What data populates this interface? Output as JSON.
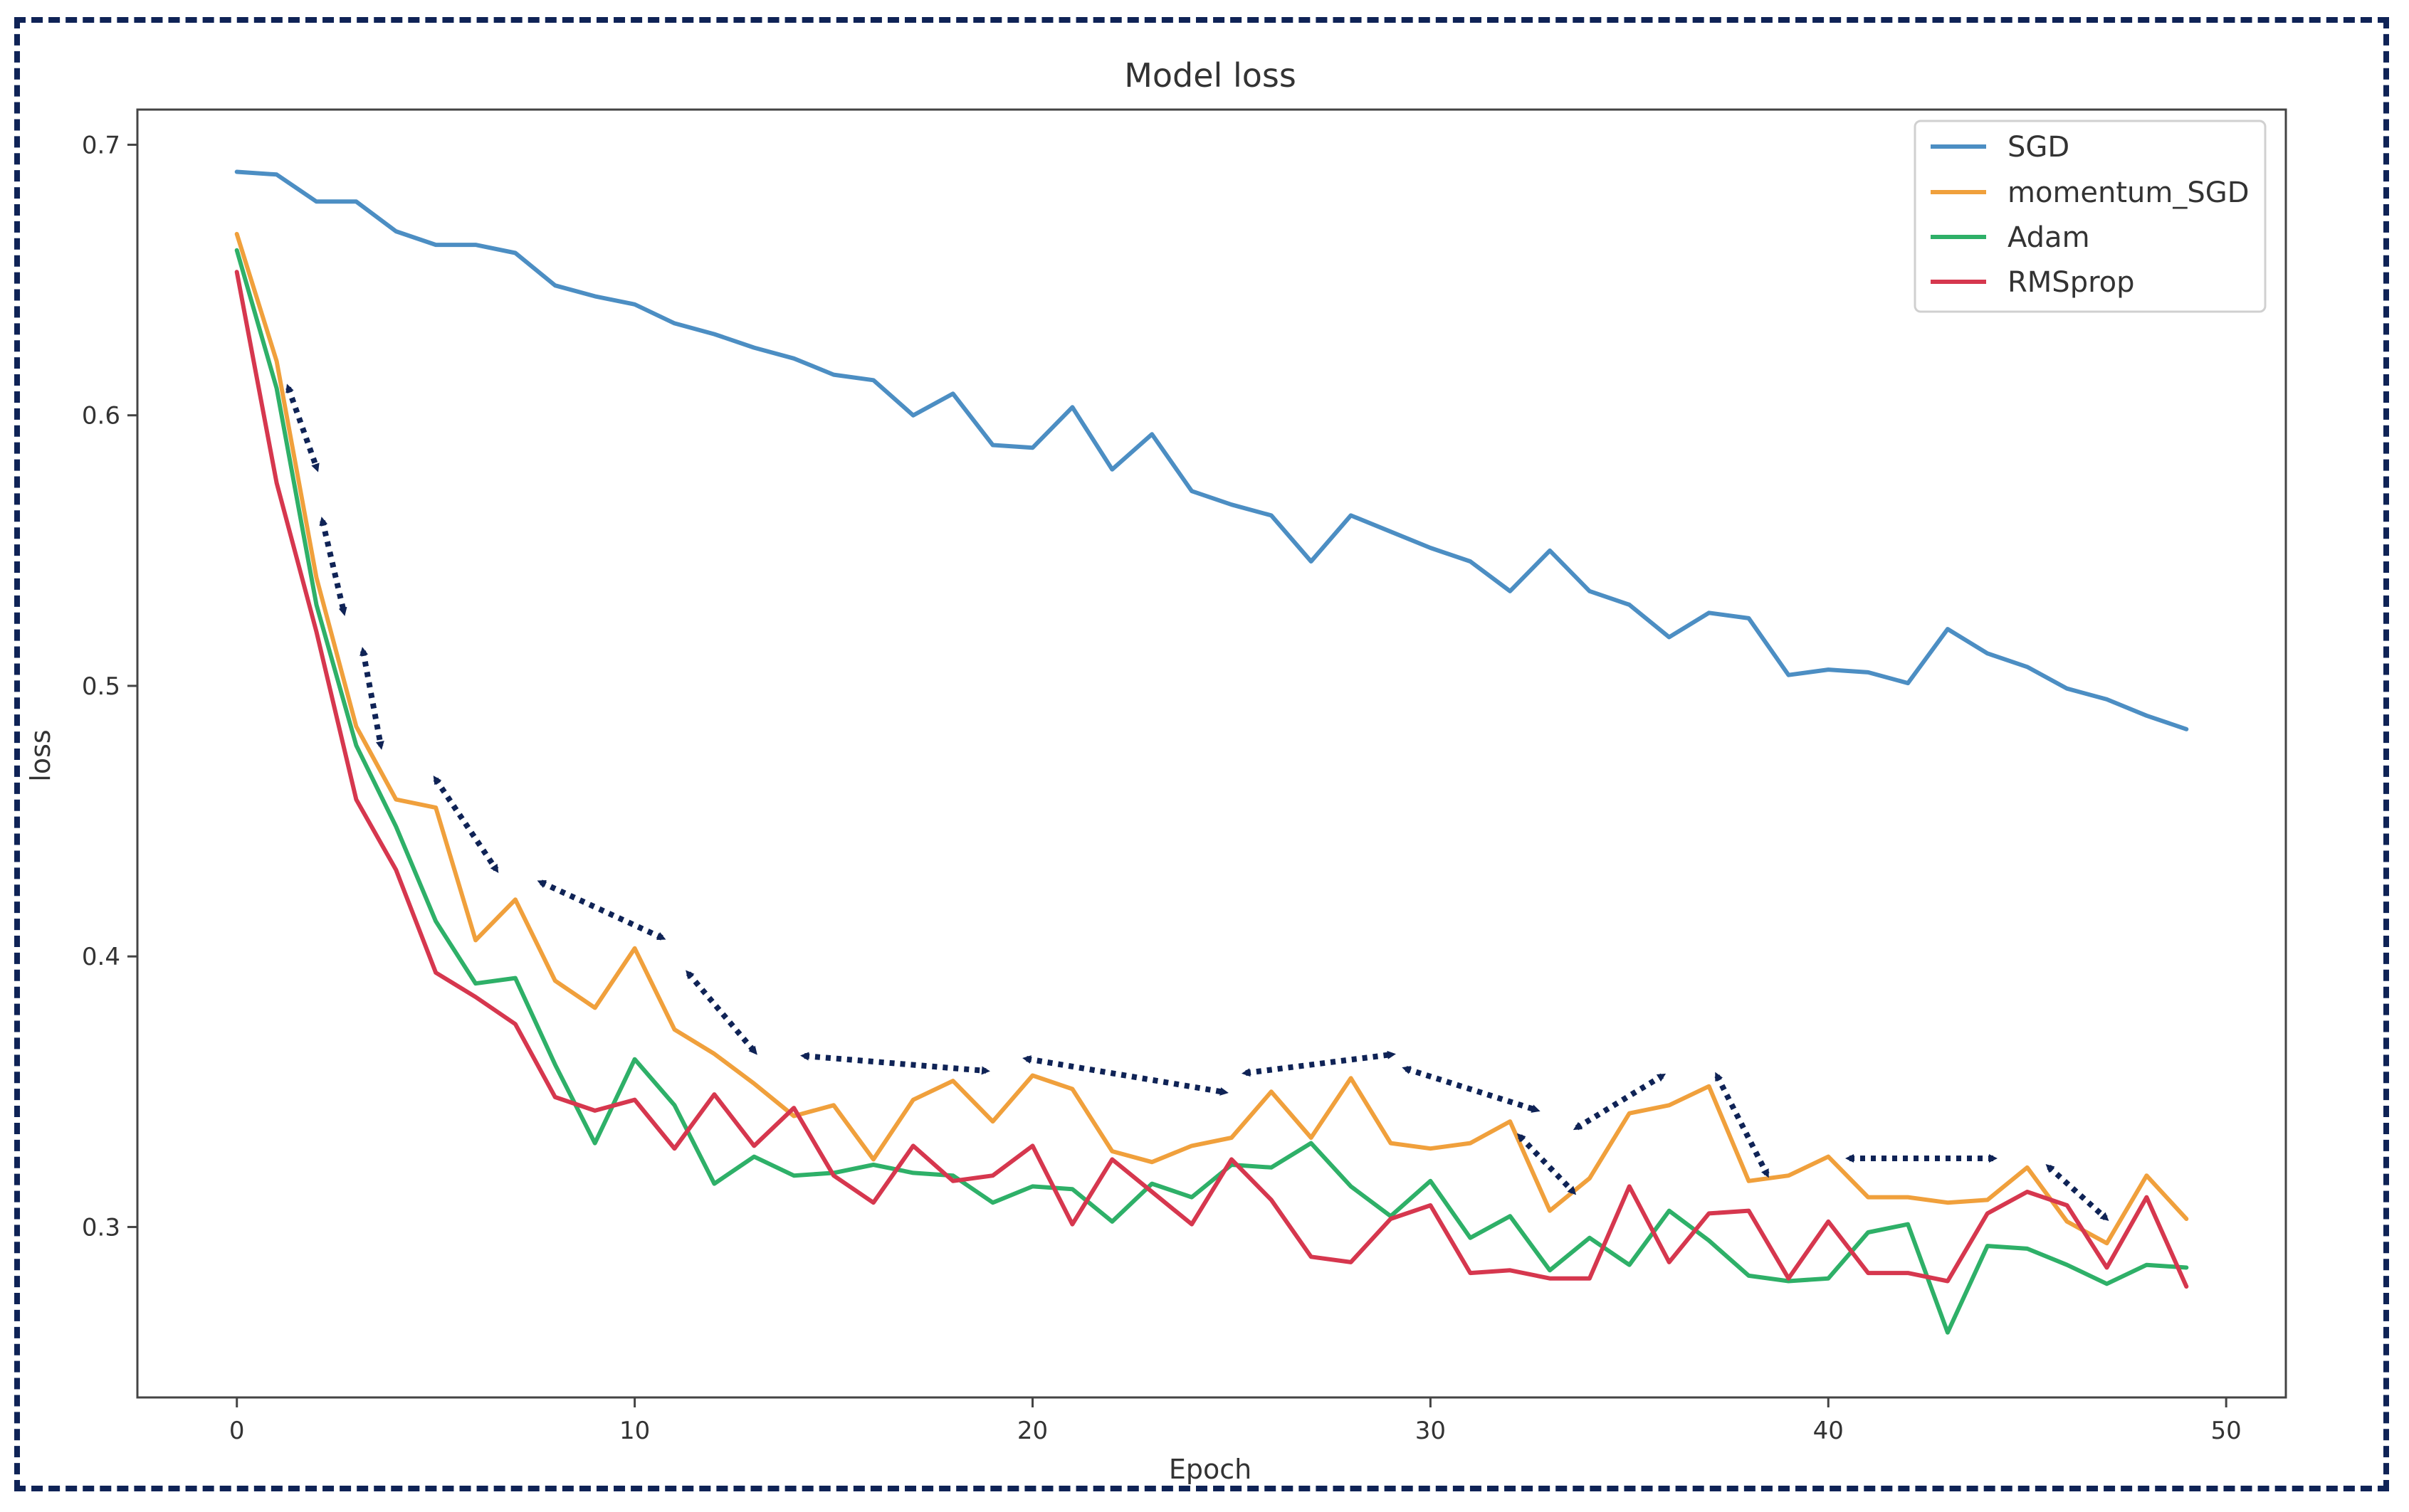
{
  "chart_data": {
    "type": "line",
    "title": "Model loss",
    "xlabel": "Epoch",
    "ylabel": "loss",
    "xlim": [
      -2.5,
      51.5
    ],
    "ylim": [
      0.237,
      0.713
    ],
    "xticks": [
      0,
      10,
      20,
      30,
      40,
      50
    ],
    "xtick_labels": [
      "0",
      "10",
      "20",
      "30",
      "40",
      "50"
    ],
    "yticks": [
      0.3,
      0.4,
      0.5,
      0.6,
      0.7
    ],
    "ytick_labels": [
      "0.3",
      "0.4",
      "0.5",
      "0.6",
      "0.7"
    ],
    "legend_position": "top-right",
    "x": [
      0,
      1,
      2,
      3,
      4,
      5,
      6,
      7,
      8,
      9,
      10,
      11,
      12,
      13,
      14,
      15,
      16,
      17,
      18,
      19,
      20,
      21,
      22,
      23,
      24,
      25,
      26,
      27,
      28,
      29,
      30,
      31,
      32,
      33,
      34,
      35,
      36,
      37,
      38,
      39,
      40,
      41,
      42,
      43,
      44,
      45,
      46,
      47,
      48,
      49
    ],
    "series": [
      {
        "name": "SGD",
        "color": "#4c8ec3",
        "values": [
          0.69,
          0.689,
          0.679,
          0.679,
          0.668,
          0.663,
          0.663,
          0.66,
          0.648,
          0.644,
          0.641,
          0.634,
          0.63,
          0.625,
          0.621,
          0.615,
          0.613,
          0.6,
          0.608,
          0.589,
          0.588,
          0.603,
          0.58,
          0.593,
          0.572,
          0.567,
          0.563,
          0.546,
          0.563,
          0.557,
          0.551,
          0.546,
          0.535,
          0.55,
          0.535,
          0.53,
          0.518,
          0.527,
          0.525,
          0.504,
          0.506,
          0.505,
          0.501,
          0.521,
          0.512,
          0.507,
          0.499,
          0.495,
          0.489,
          0.484
        ]
      },
      {
        "name": "momentum_SGD",
        "color": "#f0a03c",
        "values": [
          0.667,
          0.62,
          0.54,
          0.485,
          0.458,
          0.455,
          0.406,
          0.421,
          0.391,
          0.381,
          0.403,
          0.373,
          0.364,
          0.353,
          0.341,
          0.345,
          0.325,
          0.347,
          0.354,
          0.339,
          0.356,
          0.351,
          0.328,
          0.324,
          0.33,
          0.333,
          0.35,
          0.333,
          0.355,
          0.331,
          0.329,
          0.331,
          0.339,
          0.306,
          0.318,
          0.342,
          0.345,
          0.352,
          0.317,
          0.319,
          0.326,
          0.311,
          0.311,
          0.309,
          0.31,
          0.322,
          0.302,
          0.294,
          0.319,
          0.303
        ]
      },
      {
        "name": "Adam",
        "color": "#2eb068",
        "values": [
          0.661,
          0.61,
          0.53,
          0.478,
          0.448,
          0.413,
          0.39,
          0.392,
          0.36,
          0.331,
          0.362,
          0.345,
          0.316,
          0.326,
          0.319,
          0.32,
          0.323,
          0.32,
          0.319,
          0.309,
          0.315,
          0.314,
          0.302,
          0.316,
          0.311,
          0.323,
          0.322,
          0.331,
          0.315,
          0.304,
          0.317,
          0.296,
          0.304,
          0.284,
          0.296,
          0.286,
          0.306,
          0.295,
          0.282,
          0.28,
          0.281,
          0.298,
          0.301,
          0.261,
          0.293,
          0.292,
          0.286,
          0.279,
          0.286,
          0.285
        ]
      },
      {
        "name": "RMSprop",
        "color": "#d6374e",
        "values": [
          0.653,
          0.575,
          0.52,
          0.458,
          0.432,
          0.394,
          0.385,
          0.375,
          0.348,
          0.343,
          0.347,
          0.329,
          0.349,
          0.33,
          0.344,
          0.319,
          0.309,
          0.33,
          0.317,
          0.319,
          0.33,
          0.301,
          0.325,
          0.313,
          0.301,
          0.325,
          0.31,
          0.289,
          0.287,
          0.303,
          0.308,
          0.283,
          0.284,
          0.281,
          0.281,
          0.315,
          0.287,
          0.305,
          0.306,
          0.281,
          0.302,
          0.283,
          0.283,
          0.28,
          0.305,
          0.313,
          0.308,
          0.285,
          0.311,
          0.278
        ]
      }
    ]
  }
}
